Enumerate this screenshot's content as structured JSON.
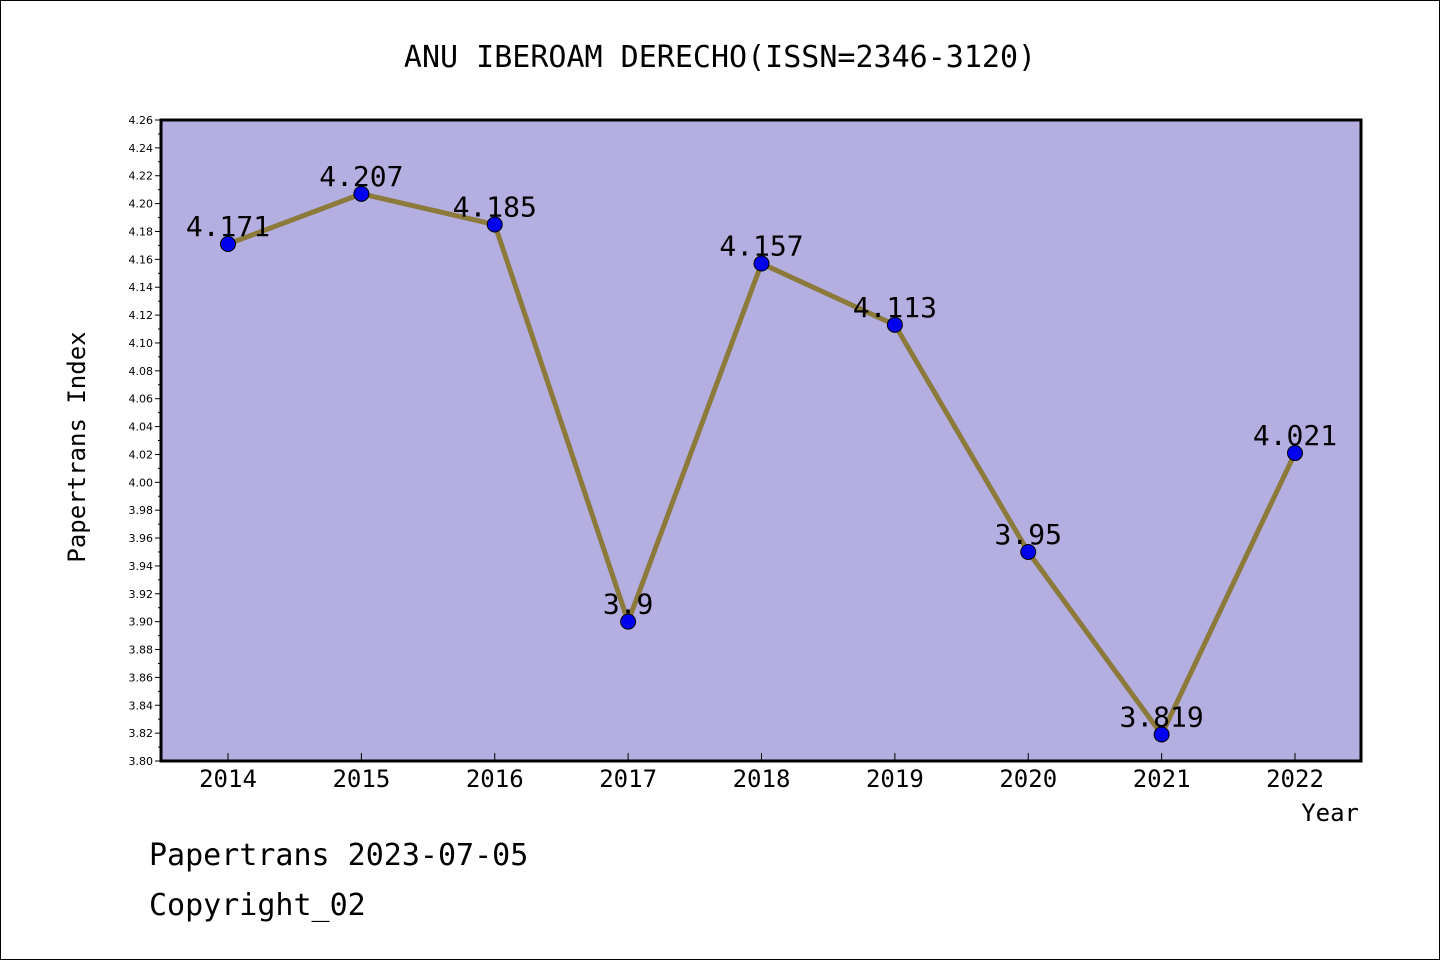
{
  "chart_data": {
    "type": "line",
    "title": "ANU IBEROAM DERECHO(ISSN=2346-3120)",
    "xlabel": "Year",
    "ylabel": "Papertrans Index",
    "categories": [
      "2014",
      "2015",
      "2016",
      "2017",
      "2018",
      "2019",
      "2020",
      "2021",
      "2022"
    ],
    "series": [
      {
        "values": [
          4.171,
          4.207,
          4.185,
          3.9,
          4.157,
          4.113,
          3.95,
          3.819,
          4.021
        ],
        "labels": [
          "4.171",
          "4.207",
          "4.185",
          "3.9",
          "4.157",
          "4.113",
          "3.95",
          "3.819",
          "4.021"
        ]
      }
    ],
    "ylim": [
      3.8,
      4.26
    ],
    "yticks": [
      "3.80",
      "3.82",
      "3.84",
      "3.86",
      "3.88",
      "3.90",
      "3.92",
      "3.94",
      "3.96",
      "3.98",
      "4.00",
      "4.02",
      "4.04",
      "4.06",
      "4.08",
      "4.10",
      "4.12",
      "4.14",
      "4.16",
      "4.18",
      "4.20",
      "4.22",
      "4.24",
      "4.26"
    ],
    "grid": false,
    "colors": {
      "plot_background": "#b4aee1",
      "line": "#8b7a3a",
      "marker": "#0000ee"
    }
  },
  "footer": {
    "source": "Papertrans 2023-07-05",
    "copyright": "Copyright_02"
  }
}
